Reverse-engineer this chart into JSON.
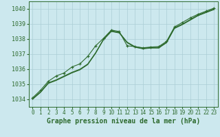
{
  "title": "Graphe pression niveau de la mer (hPa)",
  "bg_color": "#cce8ee",
  "grid_color": "#aacdd5",
  "line_color": "#2d6a2d",
  "xlim": [
    -0.5,
    23.5
  ],
  "ylim": [
    1033.5,
    1040.5
  ],
  "yticks": [
    1034,
    1035,
    1036,
    1037,
    1038,
    1039,
    1040
  ],
  "xticks": [
    0,
    1,
    2,
    3,
    4,
    5,
    6,
    7,
    8,
    9,
    10,
    11,
    12,
    13,
    14,
    15,
    16,
    17,
    18,
    19,
    20,
    21,
    22,
    23
  ],
  "series_main": [
    1034.05,
    1034.5,
    1035.1,
    1035.3,
    1035.55,
    1035.8,
    1036.0,
    1036.35,
    1037.1,
    1038.0,
    1038.55,
    1038.45,
    1037.8,
    1037.5,
    1037.4,
    1037.45,
    1037.45,
    1037.8,
    1038.75,
    1039.0,
    1039.3,
    1039.6,
    1039.8,
    1040.0
  ],
  "series_b": [
    1034.0,
    1034.45,
    1035.05,
    1035.25,
    1035.5,
    1035.75,
    1035.95,
    1036.3,
    1037.05,
    1037.95,
    1038.5,
    1038.4,
    1037.75,
    1037.45,
    1037.35,
    1037.4,
    1037.4,
    1037.75,
    1038.7,
    1038.95,
    1039.25,
    1039.55,
    1039.75,
    1039.95
  ],
  "series_c": [
    1034.02,
    1034.47,
    1035.07,
    1035.27,
    1035.52,
    1035.77,
    1035.97,
    1036.32,
    1037.07,
    1037.97,
    1038.52,
    1038.42,
    1037.77,
    1037.47,
    1037.37,
    1037.42,
    1037.42,
    1037.77,
    1038.72,
    1038.97,
    1039.27,
    1039.57,
    1039.77,
    1039.97
  ],
  "series_high": [
    1034.1,
    1034.6,
    1035.2,
    1035.55,
    1035.75,
    1036.15,
    1036.35,
    1036.85,
    1037.55,
    1038.05,
    1038.6,
    1038.5,
    1037.55,
    1037.5,
    1037.42,
    1037.47,
    1037.5,
    1037.85,
    1038.8,
    1039.1,
    1039.4,
    1039.65,
    1039.85,
    1040.05
  ],
  "tick_fontsize": 6.5,
  "title_fontsize": 7.0
}
